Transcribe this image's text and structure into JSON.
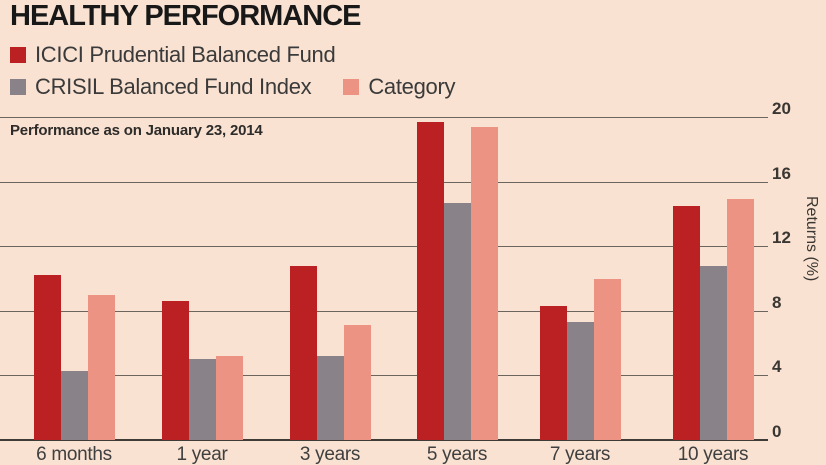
{
  "title": "HEALTHY PERFORMANCE",
  "note": "Performance as on January 23, 2014",
  "legend": [
    {
      "label": "ICICI Prudential Balanced Fund",
      "color": "#bb2023"
    },
    {
      "label": "CRISIL Balanced Fund Index",
      "color": "#8a8289"
    },
    {
      "label": "Category",
      "color": "#ed9384"
    }
  ],
  "chart_data": {
    "type": "bar",
    "categories": [
      "6 months",
      "1 year",
      "3 years",
      "5 years",
      "7 years",
      "10 years"
    ],
    "series": [
      {
        "name": "ICICI Prudential Balanced Fund",
        "color": "#bb2023",
        "values": [
          10.2,
          8.6,
          10.8,
          19.7,
          8.3,
          14.5
        ]
      },
      {
        "name": "CRISIL Balanced Fund Index",
        "color": "#8a8289",
        "values": [
          4.3,
          5.0,
          5.2,
          14.7,
          7.3,
          10.8
        ]
      },
      {
        "name": "Category",
        "color": "#ed9384",
        "values": [
          9.0,
          5.2,
          7.1,
          19.4,
          10.0,
          14.9
        ]
      }
    ],
    "title": "HEALTHY PERFORMANCE",
    "subtitle": "Performance as on January 23, 2014",
    "xlabel": "",
    "ylabel": "Returns (%)",
    "ylim": [
      0,
      20
    ],
    "yticks": [
      0,
      4,
      8,
      12,
      16,
      20
    ],
    "grid": true,
    "legend_position": "top-left"
  },
  "colors": {
    "background": "#f9e2d2",
    "gridline": "#6b655e",
    "axis": "#3f3b37",
    "title_text": "#181818",
    "body_text": "#3a3a3a"
  }
}
